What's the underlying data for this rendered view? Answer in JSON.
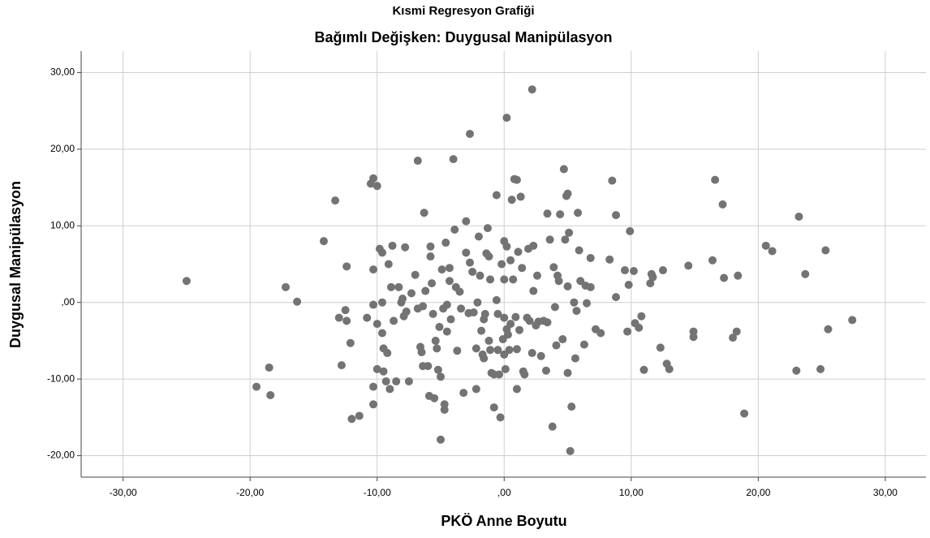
{
  "chart_data": {
    "type": "scatter",
    "title": "Kısmi Regresyon Grafiği",
    "subtitle": "Bağımlı Değişken: Duygusal Manipülasyon",
    "x_label": "PKÖ Anne Boyutu",
    "y_label": "Duygusal Manipülasyon",
    "color": "#737373",
    "grid": true,
    "xlim": [
      -33.3,
      33.2
    ],
    "ylim": [
      -22.8,
      32.8
    ],
    "xticks": [
      {
        "value": -30,
        "label": "-30,00"
      },
      {
        "value": -20,
        "label": "-20,00"
      },
      {
        "value": -10,
        "label": "-10,00"
      },
      {
        "value": 0,
        "label": ",00"
      },
      {
        "value": 10,
        "label": "10,00"
      },
      {
        "value": 20,
        "label": "20,00"
      },
      {
        "value": 30,
        "label": "30,00"
      }
    ],
    "yticks": [
      {
        "value": -20,
        "label": "-20,00"
      },
      {
        "value": -10,
        "label": "-10,00"
      },
      {
        "value": 0,
        "label": ",00"
      },
      {
        "value": 10,
        "label": "10,00"
      },
      {
        "value": 20,
        "label": "20,00"
      },
      {
        "value": 30,
        "label": "30,00"
      }
    ],
    "x": [
      -25,
      -19.5,
      -18.5,
      -18.4,
      -17.2,
      -16.3,
      -14.2,
      -13.3,
      -13,
      -12.8,
      -12.5,
      -12.4,
      -12.4,
      -12.1,
      -12,
      -11.4,
      -10.8,
      -10.5,
      -10.3,
      -10.3,
      -10.3,
      -10.3,
      -10.3,
      -10,
      -10,
      -10,
      -9.8,
      -9.6,
      -9.6,
      -9.6,
      -9.5,
      -9.5,
      -9.3,
      -9.2,
      -9.1,
      -9,
      -8.9,
      -8.8,
      -8.7,
      -8.5,
      -8.3,
      -8.1,
      -8,
      -7.9,
      -7.8,
      -7.7,
      -7.5,
      -7.3,
      -7,
      -6.8,
      -6.8,
      -6.6,
      -6.5,
      -6.4,
      -6.4,
      -6.3,
      -6.2,
      -6,
      -5.9,
      -5.8,
      -5.8,
      -5.7,
      -5.6,
      -5.5,
      -5.4,
      -5.3,
      -5.2,
      -5.1,
      -5,
      -5,
      -4.9,
      -4.8,
      -4.7,
      -4.7,
      -4.6,
      -4.5,
      -4.5,
      -4.3,
      -4.3,
      -4.2,
      -4,
      -3.9,
      -3.8,
      -3.7,
      -3.5,
      -3.4,
      -3.2,
      -3,
      -3,
      -2.8,
      -2.7,
      -2.7,
      -2.5,
      -2.4,
      -2.2,
      -2.2,
      -2.1,
      -2,
      -1.9,
      -1.8,
      -1.7,
      -1.6,
      -1.6,
      -1.5,
      -1.4,
      -1.3,
      -1.2,
      -1.2,
      -1.1,
      -1.1,
      -1,
      -0.8,
      -0.8,
      -0.6,
      -0.6,
      -0.5,
      -0.5,
      -0.4,
      -0.3,
      -0.2,
      -0.1,
      0,
      0,
      0,
      0,
      0.1,
      0.2,
      0.2,
      0.2,
      0.3,
      0.4,
      0.5,
      0.5,
      0.6,
      0.7,
      0.8,
      0.9,
      1,
      1,
      1,
      1.1,
      1.2,
      1.3,
      1.4,
      1.5,
      1.6,
      1.8,
      1.9,
      2,
      2.2,
      2.2,
      2.3,
      2.3,
      2.5,
      2.6,
      2.7,
      2.9,
      3.1,
      3.3,
      3.4,
      3.4,
      3.6,
      3.8,
      3.9,
      4,
      4.1,
      4.2,
      4.3,
      4.4,
      4.6,
      4.7,
      4.8,
      4.9,
      5,
      5,
      5,
      5.1,
      5.2,
      5.3,
      5.5,
      5.6,
      5.7,
      5.8,
      5.9,
      6,
      6.3,
      6.4,
      6.5,
      6.8,
      6.8,
      7.2,
      7.6,
      8.3,
      8.5,
      8.8,
      8.8,
      9.5,
      9.7,
      9.8,
      9.9,
      10.2,
      10.3,
      10.6,
      10.8,
      11,
      11.5,
      11.6,
      11.7,
      12.3,
      12.5,
      12.8,
      13,
      14.5,
      14.9,
      14.9,
      16.4,
      16.6,
      17.2,
      17.3,
      18,
      18.3,
      18.4,
      18.9,
      20.6,
      21.1,
      23,
      23.2,
      23.7,
      24.9,
      25.3,
      25.5,
      27.4
    ],
    "y": [
      2.8,
      -11,
      -8.5,
      -12.1,
      2,
      0.1,
      8,
      13.3,
      -2,
      -8.2,
      -1,
      4.7,
      -2.4,
      -5.3,
      -15.2,
      -14.8,
      -2,
      15.5,
      16.2,
      4.3,
      -0.3,
      -11,
      -13.3,
      15.2,
      -2.8,
      -8.7,
      7,
      6.5,
      0,
      -4,
      -9,
      -6,
      -10.3,
      -6.6,
      5,
      -11.3,
      2,
      7.4,
      -2.4,
      -10.3,
      2,
      0,
      0.5,
      -1.8,
      7.2,
      -1.2,
      -10.3,
      1.2,
      3.6,
      -0.8,
      18.5,
      -5.8,
      -6.5,
      -0.5,
      -8.3,
      11.7,
      1.5,
      -8.3,
      -12.2,
      6,
      7.3,
      2.5,
      -1.5,
      -12.5,
      -5,
      -6,
      -8.8,
      -3.2,
      -9.7,
      -17.9,
      4.3,
      -0.8,
      -13.3,
      -14,
      7.8,
      -0.3,
      -3.8,
      2.8,
      4.5,
      -2.2,
      18.7,
      9.5,
      2,
      -6.3,
      1.4,
      -0.8,
      -11.8,
      10.6,
      6.5,
      -1.4,
      5.2,
      22,
      4,
      -1.3,
      -6,
      -11.3,
      0,
      8.6,
      3.5,
      -3.7,
      -6.8,
      -2.2,
      -7.3,
      -1.5,
      6.4,
      9.7,
      6,
      -5,
      3,
      -6.2,
      -9.2,
      -13.7,
      -9.4,
      14,
      0.3,
      -1.5,
      -6.2,
      -9.4,
      -15,
      5,
      -4.8,
      8,
      3,
      -2,
      -6.8,
      -8.7,
      24.1,
      7.3,
      -3.5,
      -4.2,
      -6.2,
      5.5,
      -2.8,
      13.4,
      3,
      16.1,
      -1.9,
      16,
      -6.1,
      -11.3,
      6.6,
      -3.6,
      13.8,
      4.5,
      -9,
      -9.4,
      -2,
      7,
      -2.4,
      27.8,
      -6.6,
      1.5,
      7.4,
      -3,
      3.5,
      -2.5,
      -7,
      -2.4,
      -8.9,
      -2.6,
      11.6,
      8.2,
      -16.2,
      4.6,
      -0.6,
      -5.6,
      3.5,
      2.8,
      11.5,
      -4.8,
      17.4,
      8.2,
      13.9,
      14.2,
      -9.2,
      2.1,
      9.1,
      -19.4,
      -13.6,
      0,
      -7.3,
      -1.1,
      11.7,
      6.8,
      2.8,
      -5.5,
      2.2,
      -0.1,
      5.8,
      2,
      -3.5,
      -4,
      5.6,
      15.9,
      11.4,
      0.7,
      4.2,
      -3.8,
      2.3,
      9.3,
      4.1,
      -2.7,
      -3.3,
      -1.8,
      -8.8,
      2.5,
      3.7,
      3.3,
      -5.9,
      4.2,
      -8,
      -8.7,
      4.8,
      -3.8,
      -4.5,
      5.5,
      16,
      12.8,
      3.2,
      -4.6,
      -3.8,
      3.5,
      -14.5,
      7.4,
      6.7,
      -8.9,
      11.2,
      3.7,
      -8.7,
      6.8,
      -3.5,
      -2.3
    ]
  }
}
